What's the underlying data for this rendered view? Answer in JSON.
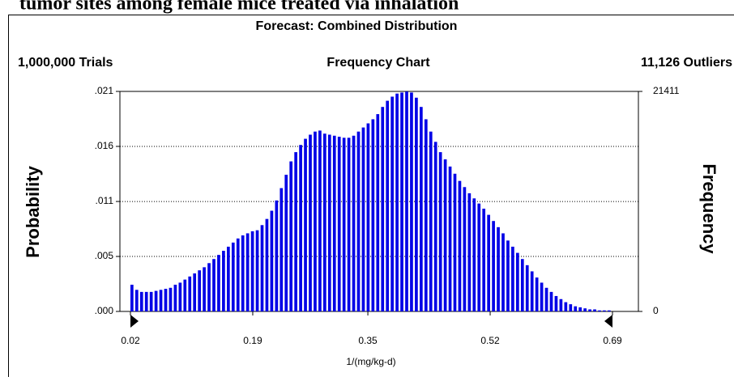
{
  "page_caption": "tumor sites among female mice treated via inhalation",
  "chart_data": {
    "type": "histogram",
    "title": "Forecast: Combined Distribution",
    "subtitle": "Frequency Chart",
    "trials_label": "1,000,000 Trials",
    "outliers_label": "11,126 Outliers",
    "ylabel": "Probability",
    "y2label": "Frequency",
    "xlabel": "1/(mg/kg-d)",
    "color": "#0000e6",
    "grid": true,
    "xlim": [
      0.02,
      0.69
    ],
    "xticks": [
      0.02,
      0.19,
      0.35,
      0.52,
      0.69
    ],
    "ylim": [
      0,
      0.021411
    ],
    "yticks": [
      {
        "value": 0,
        "label": ".000"
      },
      {
        "value": 0.00535,
        "label": ".005"
      },
      {
        "value": 0.0107,
        "label": ".011"
      },
      {
        "value": 0.01606,
        "label": ".016"
      },
      {
        "value": 0.021411,
        "label": ".021"
      }
    ],
    "y2lim": [
      0,
      21411
    ],
    "y2ticks": [
      0,
      21411
    ],
    "bins": [
      0.02,
      0.0267,
      0.0334,
      0.0401,
      0.0468,
      0.0535,
      0.0602,
      0.0669,
      0.0736,
      0.0803,
      0.087,
      0.0937,
      0.1004,
      0.1071,
      0.1138,
      0.1205,
      0.1272,
      0.1339,
      0.1406,
      0.1473,
      0.154,
      0.1607,
      0.1674,
      0.1741,
      0.1808,
      0.1875,
      0.1942,
      0.2009,
      0.2076,
      0.2143,
      0.221,
      0.2277,
      0.2344,
      0.2411,
      0.2478,
      0.2545,
      0.2612,
      0.2679,
      0.2746,
      0.2813,
      0.288,
      0.2947,
      0.3014,
      0.3081,
      0.3148,
      0.3215,
      0.3282,
      0.3349,
      0.3416,
      0.3483,
      0.355,
      0.3617,
      0.3684,
      0.3751,
      0.3818,
      0.3885,
      0.3952,
      0.4019,
      0.4086,
      0.4153,
      0.422,
      0.4287,
      0.4354,
      0.4421,
      0.4488,
      0.4555,
      0.4622,
      0.4689,
      0.4756,
      0.4823,
      0.489,
      0.4957,
      0.5024,
      0.5091,
      0.5158,
      0.5225,
      0.5292,
      0.5359,
      0.5426,
      0.5493,
      0.556,
      0.5627,
      0.5694,
      0.5761,
      0.5828,
      0.5895,
      0.5962,
      0.6029,
      0.6096,
      0.6163,
      0.623,
      0.6297,
      0.6364,
      0.6431,
      0.6498,
      0.6565,
      0.6632,
      0.6699,
      0.6766,
      0.6833,
      0.69
    ],
    "values": [
      0.0026,
      0.0021,
      0.0019,
      0.0019,
      0.0019,
      0.002,
      0.0021,
      0.0022,
      0.0023,
      0.0026,
      0.0028,
      0.0031,
      0.0034,
      0.0037,
      0.004,
      0.0043,
      0.0047,
      0.0051,
      0.0055,
      0.0059,
      0.0063,
      0.0067,
      0.0071,
      0.0074,
      0.0076,
      0.0078,
      0.0079,
      0.0084,
      0.009,
      0.0098,
      0.0108,
      0.012,
      0.0133,
      0.0146,
      0.0155,
      0.0162,
      0.0168,
      0.0172,
      0.0175,
      0.0176,
      0.0173,
      0.0172,
      0.0171,
      0.017,
      0.0169,
      0.0169,
      0.0171,
      0.0175,
      0.0179,
      0.0183,
      0.0187,
      0.0192,
      0.0199,
      0.0205,
      0.0209,
      0.0212,
      0.0213,
      0.0214,
      0.0213,
      0.0208,
      0.0199,
      0.0187,
      0.0175,
      0.0165,
      0.0155,
      0.0148,
      0.0141,
      0.0134,
      0.0127,
      0.0121,
      0.0115,
      0.011,
      0.0105,
      0.01,
      0.0094,
      0.0088,
      0.0082,
      0.0076,
      0.0069,
      0.0063,
      0.0057,
      0.0051,
      0.0045,
      0.0039,
      0.0033,
      0.0028,
      0.0023,
      0.0019,
      0.0015,
      0.0012,
      0.0009,
      0.0007,
      0.0005,
      0.0004,
      0.0003,
      0.0002,
      0.0002,
      0.0001,
      0.0001,
      0.0001
    ]
  }
}
